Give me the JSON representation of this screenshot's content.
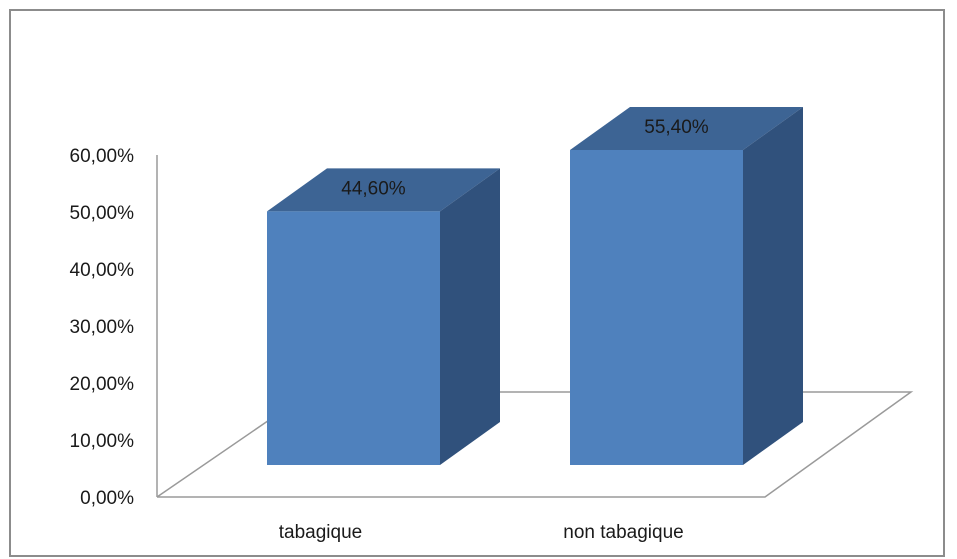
{
  "chart_data": {
    "type": "bar",
    "style": "3d-column",
    "categories": [
      "tabagique",
      "non tabagique"
    ],
    "values": [
      44.6,
      55.4
    ],
    "data_labels": [
      "44,60%",
      "55,40%"
    ],
    "y_tick_labels": [
      "0,00%",
      "10,00%",
      "20,00%",
      "30,00%",
      "40,00%",
      "50,00%",
      "60,00%"
    ],
    "ylim": [
      0,
      60
    ],
    "title": "",
    "xlabel": "",
    "ylabel": "",
    "grid": false,
    "legend": "none",
    "colors": {
      "bar_front": "#4f81bd",
      "bar_top": "#3d6494",
      "bar_side": "#30517c",
      "axis": "#9a9a9a",
      "frame": "#8c8c8c"
    }
  }
}
